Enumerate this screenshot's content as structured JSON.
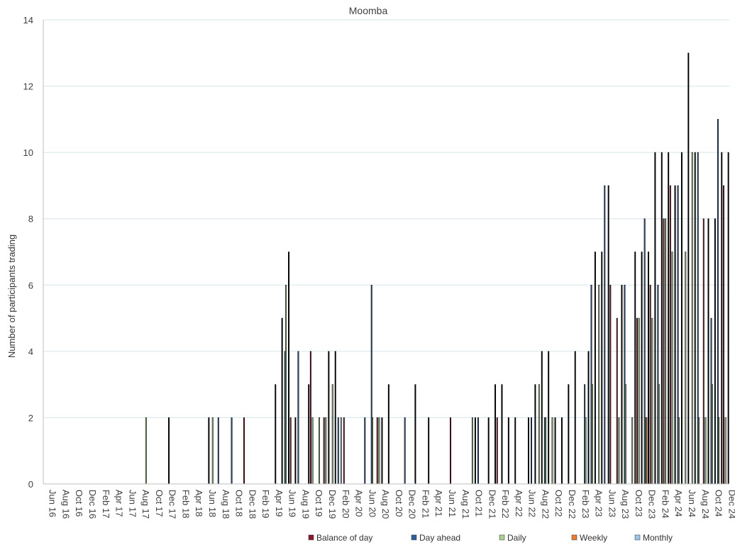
{
  "chart_data": {
    "type": "bar",
    "title": "Moomba",
    "xlabel": "",
    "ylabel": "Number of participants trading",
    "ylim": [
      0,
      14
    ],
    "yticks": [
      0,
      2,
      4,
      6,
      8,
      10,
      12,
      14
    ],
    "grid": true,
    "legend_position": "bottom",
    "colors": {
      "Balance of day": "#8b1a2b",
      "Day ahead": "#2f5f99",
      "Daily": "#a9d08e",
      "Weekly": "#ed7d31",
      "Monthly": "#9dc3e6",
      "bar_outline": "#000000",
      "grid": "#d6e4ea",
      "axis": "#bfbfbf"
    },
    "categories": [
      "Jun 16",
      "Jul 16",
      "Aug 16",
      "Sep 16",
      "Oct 16",
      "Nov 16",
      "Dec 16",
      "Jan 17",
      "Feb 17",
      "Mar 17",
      "Apr 17",
      "May 17",
      "Jun 17",
      "Jul 17",
      "Aug 17",
      "Sep 17",
      "Oct 17",
      "Nov 17",
      "Dec 17",
      "Jan 18",
      "Feb 18",
      "Mar 18",
      "Apr 18",
      "May 18",
      "Jun 18",
      "Jul 18",
      "Aug 18",
      "Sep 18",
      "Oct 18",
      "Nov 18",
      "Dec 18",
      "Jan 19",
      "Feb 19",
      "Mar 19",
      "Apr 19",
      "May 19",
      "Jun 19",
      "Jul 19",
      "Aug 19",
      "Sep 19",
      "Oct 19",
      "Nov 19",
      "Dec 19",
      "Jan 20",
      "Feb 20",
      "Mar 20",
      "Apr 20",
      "May 20",
      "Jun 20",
      "Jul 20",
      "Aug 20",
      "Sep 20",
      "Oct 20",
      "Nov 20",
      "Dec 20",
      "Jan 21",
      "Feb 21",
      "Mar 21",
      "Apr 21",
      "May 21",
      "Jun 21",
      "Jul 21",
      "Aug 21",
      "Sep 21",
      "Oct 21",
      "Nov 21",
      "Dec 21",
      "Jan 22",
      "Feb 22",
      "Mar 22",
      "Apr 22",
      "May 22",
      "Jun 22",
      "Jul 22",
      "Aug 22",
      "Sep 22",
      "Oct 22",
      "Nov 22",
      "Dec 22",
      "Jan 23",
      "Feb 23",
      "Mar 23",
      "Apr 23",
      "May 23",
      "Jun 23",
      "Jul 23",
      "Aug 23",
      "Sep 23",
      "Oct 23",
      "Nov 23",
      "Dec 23",
      "Jan 24",
      "Feb 24",
      "Mar 24",
      "Apr 24",
      "May 24",
      "Jun 24",
      "Jul 24",
      "Aug 24",
      "Sep 24",
      "Oct 24",
      "Nov 24",
      "Dec 24"
    ],
    "tick_labels": [
      "Jun 16",
      "Aug 16",
      "Oct 16",
      "Dec 16",
      "Feb 17",
      "Apr 17",
      "Jun 17",
      "Aug 17",
      "Oct 17",
      "Dec 17",
      "Feb 18",
      "Apr 18",
      "Jun 18",
      "Aug 18",
      "Oct 18",
      "Dec 18",
      "Feb 19",
      "Apr 19",
      "Jun 19",
      "Aug 19",
      "Oct 19",
      "Dec 19",
      "Feb 20",
      "Apr 20",
      "Jun 20",
      "Aug 20",
      "Oct 20",
      "Dec 20",
      "Feb 21",
      "Apr 21",
      "Jun 21",
      "Aug 21",
      "Oct 21",
      "Dec 21",
      "Feb 22",
      "Apr 22",
      "Jun 22",
      "Aug 22",
      "Oct 22",
      "Dec 22",
      "Feb 23",
      "Apr 23",
      "Jun 23",
      "Aug 23",
      "Oct 23",
      "Dec 23",
      "Feb 24",
      "Apr 24",
      "Jun 24",
      "Aug 24",
      "Oct 24",
      "Dec 24"
    ],
    "series": [
      {
        "name": "Balance of day",
        "values": [
          0,
          0,
          0,
          0,
          0,
          0,
          0,
          0,
          0,
          0,
          0,
          0,
          0,
          0,
          0,
          0,
          0,
          0,
          0,
          0,
          0,
          0,
          0,
          0,
          0,
          0,
          0,
          0,
          0,
          0,
          2,
          0,
          0,
          0,
          0,
          0,
          0,
          2,
          0,
          0,
          4,
          0,
          2,
          0,
          0,
          2,
          0,
          0,
          0,
          0,
          2,
          0,
          0,
          0,
          0,
          0,
          0,
          0,
          0,
          0,
          0,
          2,
          0,
          0,
          0,
          0,
          0,
          0,
          2,
          0,
          0,
          0,
          0,
          0,
          0,
          0,
          0,
          0,
          0,
          0,
          0,
          0,
          0,
          0,
          0,
          6,
          5,
          0,
          0,
          5,
          0,
          6,
          0,
          8,
          9,
          0,
          0,
          0,
          0,
          8,
          0,
          0,
          9
        ]
      },
      {
        "name": "Day ahead",
        "values": [
          0,
          0,
          0,
          0,
          0,
          0,
          0,
          0,
          0,
          0,
          0,
          0,
          0,
          0,
          0,
          0,
          0,
          0,
          0,
          0,
          0,
          0,
          0,
          0,
          0,
          0,
          2,
          0,
          2,
          0,
          0,
          0,
          0,
          0,
          0,
          0,
          4,
          0,
          4,
          0,
          0,
          0,
          0,
          0,
          2,
          0,
          0,
          0,
          2,
          6,
          0,
          0,
          0,
          0,
          2,
          0,
          0,
          0,
          0,
          0,
          0,
          0,
          0,
          0,
          0,
          2,
          0,
          0,
          0,
          0,
          0,
          0,
          0,
          2,
          0,
          2,
          0,
          0,
          0,
          0,
          0,
          3,
          6,
          0,
          9,
          0,
          0,
          6,
          0,
          0,
          8,
          0,
          6,
          0,
          0,
          9,
          0,
          0,
          10,
          0,
          5,
          11,
          0
        ]
      },
      {
        "name": "Daily",
        "values": [
          0,
          0,
          0,
          0,
          0,
          0,
          0,
          0,
          0,
          0,
          0,
          0,
          0,
          0,
          0,
          2,
          0,
          0,
          0,
          0,
          0,
          0,
          0,
          0,
          0,
          2,
          0,
          0,
          0,
          0,
          0,
          0,
          0,
          0,
          0,
          0,
          6,
          0,
          0,
          0,
          2,
          2,
          2,
          3,
          0,
          0,
          0,
          0,
          0,
          2,
          2,
          0,
          0,
          0,
          0,
          0,
          0,
          0,
          0,
          0,
          0,
          0,
          0,
          0,
          2,
          0,
          0,
          0,
          0,
          0,
          0,
          0,
          0,
          0,
          3,
          2,
          2,
          0,
          0,
          0,
          0,
          2,
          3,
          6,
          0,
          0,
          2,
          3,
          2,
          5,
          2,
          5,
          3,
          8,
          7,
          2,
          7,
          10,
          2,
          2,
          3,
          2,
          2
        ]
      },
      {
        "name": "Weekly",
        "values": [
          0,
          0,
          0,
          0,
          0,
          0,
          0,
          0,
          0,
          0,
          0,
          0,
          0,
          0,
          0,
          0,
          0,
          0,
          0,
          0,
          0,
          0,
          0,
          0,
          0,
          0,
          0,
          0,
          0,
          0,
          0,
          0,
          0,
          0,
          0,
          0,
          0,
          0,
          0,
          0,
          0,
          0,
          0,
          0,
          0,
          0,
          0,
          0,
          0,
          0,
          0,
          0,
          0,
          0,
          0,
          0,
          0,
          0,
          0,
          0,
          0,
          0,
          0,
          0,
          0,
          0,
          0,
          0,
          0,
          0,
          0,
          0,
          0,
          0,
          0,
          0,
          0,
          0,
          0,
          0,
          0,
          0,
          0,
          0,
          0,
          0,
          0,
          0,
          0,
          0,
          2,
          0,
          0,
          0,
          0,
          0,
          0,
          0,
          0,
          0,
          0,
          0,
          0
        ]
      },
      {
        "name": "Monthly",
        "values": [
          0,
          0,
          0,
          0,
          0,
          0,
          0,
          0,
          0,
          0,
          0,
          0,
          0,
          0,
          0,
          0,
          0,
          0,
          0,
          0,
          0,
          0,
          0,
          0,
          0,
          0,
          0,
          0,
          0,
          0,
          0,
          0,
          0,
          0,
          0,
          0,
          0,
          0,
          0,
          0,
          0,
          0,
          0,
          0,
          2,
          0,
          0,
          0,
          0,
          0,
          0,
          0,
          0,
          0,
          0,
          0,
          0,
          0,
          0,
          0,
          0,
          0,
          0,
          0,
          0,
          0,
          0,
          0,
          0,
          0,
          0,
          0,
          0,
          0,
          0,
          0,
          0,
          0,
          0,
          0,
          0,
          0,
          0,
          0,
          0,
          0,
          0,
          0,
          0,
          0,
          0,
          0,
          0,
          0,
          0,
          0,
          0,
          0,
          0,
          0,
          0,
          0,
          0
        ]
      },
      {
        "name": "",
        "values": [
          0,
          0,
          0,
          0,
          0,
          0,
          0,
          0,
          0,
          0,
          0,
          0,
          0,
          0,
          0,
          0,
          0,
          0,
          2,
          0,
          0,
          0,
          0,
          0,
          2,
          0,
          0,
          0,
          0,
          0,
          0,
          0,
          0,
          0,
          3,
          5,
          7,
          2,
          0,
          3,
          0,
          0,
          4,
          4,
          0,
          0,
          0,
          0,
          0,
          0,
          2,
          3,
          0,
          0,
          0,
          3,
          0,
          2,
          0,
          0,
          0,
          0,
          0,
          0,
          2,
          0,
          2,
          3,
          3,
          2,
          2,
          0,
          2,
          3,
          4,
          4,
          2,
          2,
          3,
          4,
          0,
          4,
          7,
          7,
          9,
          0,
          6,
          0,
          7,
          7,
          7,
          10,
          10,
          10,
          9,
          10,
          13,
          10,
          0,
          8,
          8,
          10,
          10
        ]
      }
    ]
  }
}
